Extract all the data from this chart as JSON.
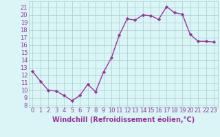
{
  "x": [
    0,
    1,
    2,
    3,
    4,
    5,
    6,
    7,
    8,
    9,
    10,
    11,
    12,
    13,
    14,
    15,
    16,
    17,
    18,
    19,
    20,
    21,
    22,
    23
  ],
  "y": [
    12.5,
    11.2,
    10.0,
    9.9,
    9.3,
    8.6,
    9.3,
    10.8,
    9.8,
    12.4,
    14.3,
    17.3,
    19.5,
    19.3,
    20.0,
    19.9,
    19.4,
    21.1,
    20.3,
    20.1,
    17.4,
    16.5,
    16.5,
    16.4
  ],
  "line_color": "#993399",
  "marker": "D",
  "marker_size": 2.2,
  "bg_color": "#d9f5f5",
  "grid_color": "#aacccc",
  "xlabel": "Windchill (Refroidissement éolien,°C)",
  "xlabel_fontsize": 7,
  "xtick_labels": [
    "0",
    "1",
    "2",
    "3",
    "4",
    "5",
    "6",
    "7",
    "8",
    "9",
    "10",
    "11",
    "12",
    "13",
    "14",
    "15",
    "16",
    "17",
    "18",
    "19",
    "20",
    "21",
    "22",
    "23"
  ],
  "ytick_min": 8,
  "ytick_max": 21,
  "ytick_step": 1,
  "ylim": [
    7.8,
    21.8
  ],
  "xlim": [
    -0.5,
    23.5
  ],
  "tick_color": "#993399",
  "tick_fontsize": 6,
  "line_width": 1.0
}
